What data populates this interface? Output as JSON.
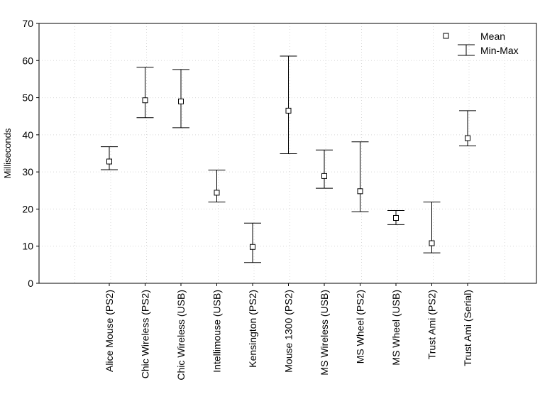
{
  "chart_data": {
    "type": "error-bar",
    "ylabel": "Milliseconds",
    "xlabel": "",
    "ylim": [
      0,
      70
    ],
    "yticks": [
      "0",
      "10",
      "20",
      "30",
      "40",
      "50",
      "60",
      "70"
    ],
    "grid": true,
    "legend": {
      "placement": "top-right",
      "mean_label": "Mean",
      "range_label": "Min-Max"
    },
    "categories": [
      "Alice Mouse (PS2)",
      "Chic Wireless (PS2)",
      "Chic Wireless (USB)",
      "Intellimouse (USB)",
      "Kensington (PS2)",
      "Mouse 1300 (PS2)",
      "MS Wireless (USB)",
      "MS Wheel (PS2)",
      "MS Wheel (USB)",
      "Trust Ami (PS2)",
      "Trust Ami (Serial)"
    ],
    "series": [
      {
        "name": "Mean",
        "values": [
          32.8,
          49.3,
          49.0,
          24.4,
          9.8,
          46.5,
          28.9,
          24.8,
          17.6,
          10.8,
          39.1
        ]
      },
      {
        "name": "Min",
        "values": [
          30.6,
          44.6,
          41.9,
          21.9,
          5.6,
          34.9,
          25.6,
          19.3,
          15.8,
          8.2,
          37.0
        ]
      },
      {
        "name": "Max",
        "values": [
          36.8,
          58.2,
          57.6,
          30.5,
          16.2,
          61.2,
          35.9,
          38.1,
          19.6,
          21.9,
          46.5
        ]
      }
    ]
  }
}
